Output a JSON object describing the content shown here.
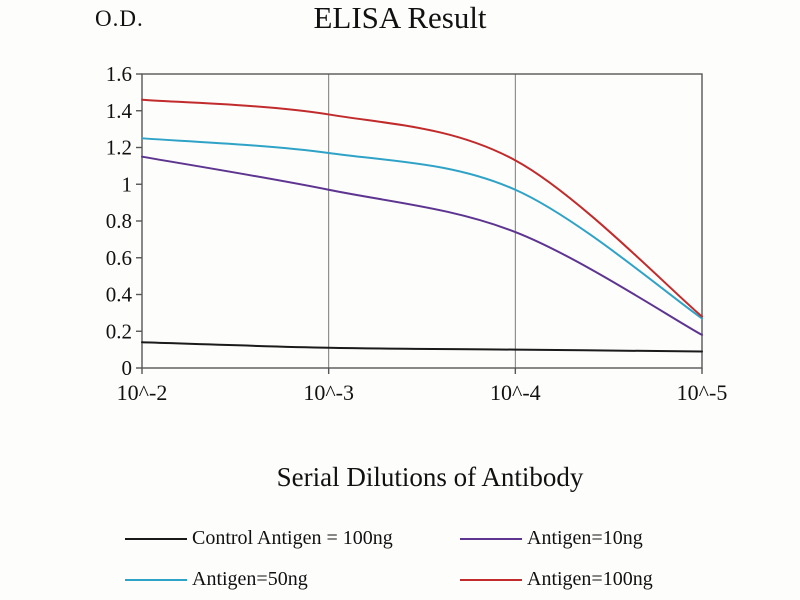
{
  "chart_data": {
    "type": "line",
    "title": "ELISA Result",
    "ylabel": "O.D.",
    "xlabel": "Serial Dilutions of Antibody",
    "categories": [
      "10^-2",
      "10^-3",
      "10^-4",
      "10^-5"
    ],
    "ylim": [
      0,
      1.6
    ],
    "yticks": [
      0,
      0.2,
      0.4,
      0.6,
      0.8,
      1,
      1.2,
      1.4,
      1.6
    ],
    "ytick_labels": [
      "0",
      "0.2",
      "0.4",
      "0.6",
      "0.8",
      "1",
      "1.2",
      "1.4",
      "1.6"
    ],
    "grid": "vertical-only",
    "legend_position": "bottom",
    "axis_color": "#565656",
    "gridline_color": "#7a7a7a",
    "series": [
      {
        "name": "Control Antigen = 100ng",
        "color": "#1a1a1a",
        "values": [
          0.14,
          0.11,
          0.1,
          0.09
        ]
      },
      {
        "name": "Antigen=10ng",
        "color": "#5d3591",
        "values": [
          1.15,
          0.97,
          0.74,
          0.18
        ]
      },
      {
        "name": "Antigen=50ng",
        "color": "#2fa3c7",
        "values": [
          1.25,
          1.17,
          0.97,
          0.27
        ]
      },
      {
        "name": "Antigen=100ng",
        "color": "#c22b2b",
        "values": [
          1.46,
          1.38,
          1.13,
          0.28
        ]
      }
    ]
  }
}
